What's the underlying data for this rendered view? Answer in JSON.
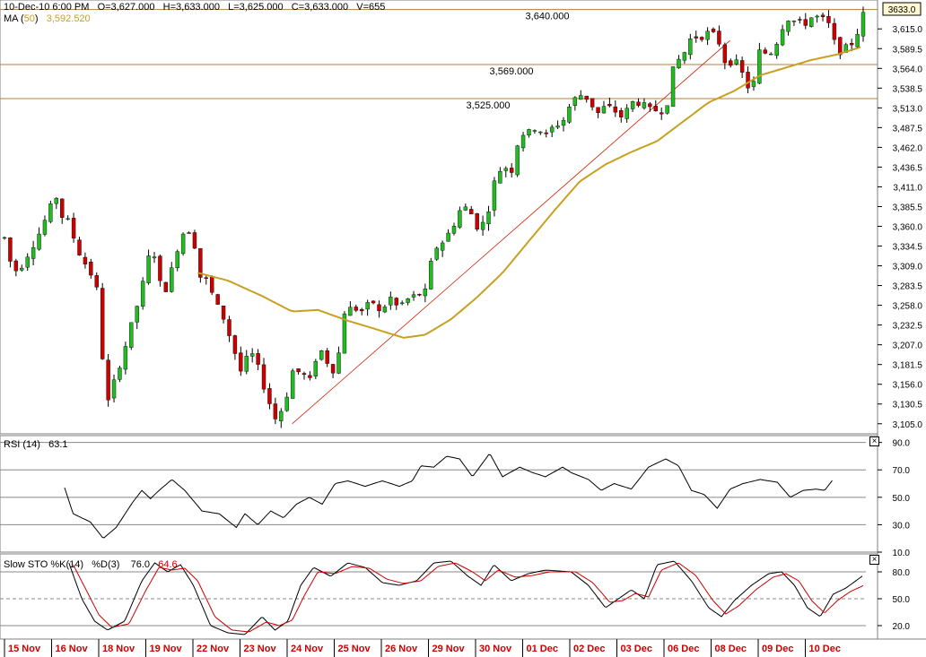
{
  "header": {
    "datetime": "10-Dec-10  6:00 PM",
    "open": "O=3,627.000",
    "high": "H=3,633.000",
    "low": "L=3,625.000",
    "close": "C=3,633.000",
    "volume": "V=655",
    "ma_label": "MA",
    "ma_period": "50",
    "ma_value": "3,592.520"
  },
  "price_tag": "3633.0",
  "colors": {
    "up": "#22bb22",
    "down": "#cc0000",
    "ma": "#c8a020",
    "hline": "#b08040",
    "trend": "#cc2200",
    "axis_date": "#cc0000",
    "grid": "#888888"
  },
  "rsi": {
    "label": "RSI (14)",
    "value": "63.1"
  },
  "sto": {
    "label": "Slow STO %K(14)",
    "d_label": "%D(3)",
    "k_value": "76.0",
    "d_value": "64.6"
  },
  "chart_data": {
    "type": "candlestick",
    "price_axis": {
      "ylim": [
        3092,
        3650
      ],
      "ticks": [
        "3,615.0",
        "3,589.5",
        "3,564.0",
        "3,538.5",
        "3,513.0",
        "3,487.5",
        "3,462.0",
        "3,436.5",
        "3,411.0",
        "3,385.5",
        "3,360.0",
        "3,334.5",
        "3,309.0",
        "3,283.5",
        "3,258.0",
        "3,232.5",
        "3,207.0",
        "3,181.5",
        "3,156.0",
        "3,130.5",
        "3,105.0"
      ]
    },
    "x_labels": [
      "15 Nov",
      "16 Nov",
      "18 Nov",
      "19 Nov",
      "22 Nov",
      "23 Nov",
      "24 Nov",
      "25 Nov",
      "26 Nov",
      "29 Nov",
      "30 Nov",
      "01 Dec",
      "02 Dec",
      "03 Dec",
      "06 Dec",
      "08 Dec",
      "09 Dec",
      "10 Dec"
    ],
    "horizontal_lines": [
      {
        "label": "3,640.000",
        "value": 3640
      },
      {
        "label": "3,569.000",
        "value": 3569
      },
      {
        "label": "3,525.000",
        "value": 3525
      }
    ],
    "trendline": {
      "from": [
        0.335,
        3105
      ],
      "to": [
        0.845,
        3600
      ]
    },
    "price_anchors": [
      [
        0.0,
        3345
      ],
      [
        0.01,
        3300
      ],
      [
        0.02,
        3310
      ],
      [
        0.03,
        3330
      ],
      [
        0.04,
        3350
      ],
      [
        0.05,
        3375
      ],
      [
        0.06,
        3400
      ],
      [
        0.065,
        3375
      ],
      [
        0.075,
        3365
      ],
      [
        0.085,
        3330
      ],
      [
        0.095,
        3310
      ],
      [
        0.105,
        3290
      ],
      [
        0.11,
        3265
      ],
      [
        0.115,
        3175
      ],
      [
        0.12,
        3130
      ],
      [
        0.128,
        3160
      ],
      [
        0.138,
        3195
      ],
      [
        0.15,
        3240
      ],
      [
        0.16,
        3280
      ],
      [
        0.168,
        3320
      ],
      [
        0.176,
        3325
      ],
      [
        0.182,
        3280
      ],
      [
        0.19,
        3280
      ],
      [
        0.198,
        3320
      ],
      [
        0.205,
        3345
      ],
      [
        0.212,
        3360
      ],
      [
        0.22,
        3345
      ],
      [
        0.228,
        3295
      ],
      [
        0.236,
        3290
      ],
      [
        0.246,
        3260
      ],
      [
        0.256,
        3240
      ],
      [
        0.266,
        3205
      ],
      [
        0.276,
        3170
      ],
      [
        0.286,
        3200
      ],
      [
        0.296,
        3175
      ],
      [
        0.306,
        3140
      ],
      [
        0.316,
        3110
      ],
      [
        0.326,
        3130
      ],
      [
        0.336,
        3175
      ],
      [
        0.346,
        3170
      ],
      [
        0.356,
        3160
      ],
      [
        0.366,
        3205
      ],
      [
        0.376,
        3185
      ],
      [
        0.386,
        3170
      ],
      [
        0.396,
        3250
      ],
      [
        0.406,
        3255
      ],
      [
        0.418,
        3250
      ],
      [
        0.428,
        3265
      ],
      [
        0.438,
        3245
      ],
      [
        0.448,
        3270
      ],
      [
        0.458,
        3255
      ],
      [
        0.468,
        3265
      ],
      [
        0.478,
        3270
      ],
      [
        0.49,
        3275
      ],
      [
        0.5,
        3330
      ],
      [
        0.51,
        3340
      ],
      [
        0.52,
        3355
      ],
      [
        0.53,
        3380
      ],
      [
        0.54,
        3385
      ],
      [
        0.55,
        3360
      ],
      [
        0.56,
        3365
      ],
      [
        0.57,
        3415
      ],
      [
        0.58,
        3440
      ],
      [
        0.59,
        3430
      ],
      [
        0.6,
        3480
      ],
      [
        0.61,
        3480
      ],
      [
        0.62,
        3490
      ],
      [
        0.63,
        3475
      ],
      [
        0.64,
        3490
      ],
      [
        0.65,
        3495
      ],
      [
        0.66,
        3520
      ],
      [
        0.67,
        3530
      ],
      [
        0.68,
        3525
      ],
      [
        0.69,
        3505
      ],
      [
        0.7,
        3515
      ],
      [
        0.71,
        3510
      ],
      [
        0.72,
        3500
      ],
      [
        0.73,
        3520
      ],
      [
        0.74,
        3520
      ],
      [
        0.75,
        3510
      ],
      [
        0.76,
        3510
      ],
      [
        0.77,
        3510
      ],
      [
        0.78,
        3570
      ],
      [
        0.79,
        3580
      ],
      [
        0.8,
        3605
      ],
      [
        0.81,
        3605
      ],
      [
        0.82,
        3610
      ],
      [
        0.83,
        3605
      ],
      [
        0.84,
        3570
      ],
      [
        0.85,
        3575
      ],
      [
        0.86,
        3555
      ],
      [
        0.87,
        3530
      ],
      [
        0.88,
        3590
      ],
      [
        0.89,
        3580
      ],
      [
        0.9,
        3600
      ],
      [
        0.91,
        3630
      ],
      [
        0.92,
        3625
      ],
      [
        0.93,
        3620
      ],
      [
        0.94,
        3630
      ],
      [
        0.95,
        3630
      ],
      [
        0.96,
        3620
      ],
      [
        0.97,
        3585
      ],
      [
        0.98,
        3590
      ],
      [
        0.99,
        3600
      ],
      [
        1.0,
        3633
      ]
    ],
    "ma_anchors": [
      [
        0.225,
        3300
      ],
      [
        0.26,
        3290
      ],
      [
        0.3,
        3270
      ],
      [
        0.335,
        3250
      ],
      [
        0.365,
        3252
      ],
      [
        0.4,
        3238
      ],
      [
        0.43,
        3228
      ],
      [
        0.465,
        3216
      ],
      [
        0.49,
        3220
      ],
      [
        0.52,
        3240
      ],
      [
        0.55,
        3268
      ],
      [
        0.58,
        3300
      ],
      [
        0.61,
        3340
      ],
      [
        0.64,
        3380
      ],
      [
        0.67,
        3418
      ],
      [
        0.7,
        3440
      ],
      [
        0.73,
        3456
      ],
      [
        0.76,
        3470
      ],
      [
        0.79,
        3495
      ],
      [
        0.82,
        3520
      ],
      [
        0.85,
        3535
      ],
      [
        0.88,
        3555
      ],
      [
        0.91,
        3565
      ],
      [
        0.94,
        3575
      ],
      [
        0.97,
        3582
      ],
      [
        1.0,
        3592.5
      ]
    ],
    "rsi_axis": {
      "ylim": [
        10,
        95
      ],
      "ticks": [
        "90.0",
        "70.0",
        "50.0",
        "30.0",
        "10.0"
      ],
      "grid": [
        30,
        50,
        70,
        90
      ]
    },
    "rsi_anchors": [
      [
        0.07,
        57
      ],
      [
        0.08,
        38
      ],
      [
        0.1,
        32
      ],
      [
        0.115,
        20
      ],
      [
        0.13,
        28
      ],
      [
        0.15,
        47
      ],
      [
        0.16,
        55
      ],
      [
        0.17,
        49
      ],
      [
        0.18,
        55
      ],
      [
        0.195,
        63
      ],
      [
        0.21,
        55
      ],
      [
        0.23,
        40
      ],
      [
        0.25,
        38
      ],
      [
        0.27,
        28
      ],
      [
        0.28,
        38
      ],
      [
        0.295,
        30
      ],
      [
        0.31,
        40
      ],
      [
        0.325,
        35
      ],
      [
        0.34,
        45
      ],
      [
        0.355,
        50
      ],
      [
        0.37,
        45
      ],
      [
        0.385,
        60
      ],
      [
        0.4,
        62
      ],
      [
        0.42,
        58
      ],
      [
        0.44,
        62
      ],
      [
        0.46,
        58
      ],
      [
        0.475,
        62
      ],
      [
        0.485,
        73
      ],
      [
        0.5,
        72
      ],
      [
        0.515,
        80
      ],
      [
        0.53,
        78
      ],
      [
        0.545,
        65
      ],
      [
        0.565,
        82
      ],
      [
        0.58,
        65
      ],
      [
        0.6,
        72
      ],
      [
        0.615,
        68
      ],
      [
        0.63,
        65
      ],
      [
        0.65,
        72
      ],
      [
        0.66,
        68
      ],
      [
        0.68,
        63
      ],
      [
        0.695,
        55
      ],
      [
        0.71,
        60
      ],
      [
        0.73,
        56
      ],
      [
        0.75,
        72
      ],
      [
        0.77,
        78
      ],
      [
        0.785,
        73
      ],
      [
        0.8,
        55
      ],
      [
        0.815,
        52
      ],
      [
        0.83,
        42
      ],
      [
        0.845,
        56
      ],
      [
        0.86,
        60
      ],
      [
        0.88,
        63
      ],
      [
        0.9,
        61
      ],
      [
        0.915,
        50
      ],
      [
        0.93,
        55
      ],
      [
        0.945,
        56
      ],
      [
        0.955,
        55
      ],
      [
        0.965,
        63
      ]
    ],
    "sto_axis": {
      "ylim": [
        5,
        100
      ],
      "ticks": [
        "80.0",
        "50.0",
        "20.0"
      ],
      "grid": [
        20,
        50,
        80
      ],
      "dashed": 50
    },
    "k_anchors": [
      [
        0.075,
        90
      ],
      [
        0.09,
        50
      ],
      [
        0.105,
        25
      ],
      [
        0.12,
        15
      ],
      [
        0.14,
        25
      ],
      [
        0.16,
        70
      ],
      [
        0.175,
        90
      ],
      [
        0.19,
        80
      ],
      [
        0.205,
        88
      ],
      [
        0.22,
        65
      ],
      [
        0.24,
        20
      ],
      [
        0.26,
        12
      ],
      [
        0.28,
        10
      ],
      [
        0.3,
        30
      ],
      [
        0.315,
        15
      ],
      [
        0.33,
        25
      ],
      [
        0.345,
        65
      ],
      [
        0.36,
        85
      ],
      [
        0.38,
        75
      ],
      [
        0.4,
        90
      ],
      [
        0.42,
        85
      ],
      [
        0.44,
        68
      ],
      [
        0.46,
        65
      ],
      [
        0.48,
        70
      ],
      [
        0.5,
        90
      ],
      [
        0.52,
        92
      ],
      [
        0.54,
        75
      ],
      [
        0.555,
        65
      ],
      [
        0.57,
        88
      ],
      [
        0.59,
        70
      ],
      [
        0.61,
        78
      ],
      [
        0.63,
        82
      ],
      [
        0.66,
        80
      ],
      [
        0.68,
        65
      ],
      [
        0.7,
        40
      ],
      [
        0.715,
        50
      ],
      [
        0.73,
        60
      ],
      [
        0.745,
        50
      ],
      [
        0.76,
        88
      ],
      [
        0.78,
        92
      ],
      [
        0.8,
        70
      ],
      [
        0.82,
        40
      ],
      [
        0.835,
        30
      ],
      [
        0.85,
        48
      ],
      [
        0.87,
        65
      ],
      [
        0.89,
        78
      ],
      [
        0.905,
        80
      ],
      [
        0.92,
        65
      ],
      [
        0.935,
        40
      ],
      [
        0.95,
        30
      ],
      [
        0.965,
        55
      ],
      [
        0.98,
        62
      ],
      [
        1.0,
        76
      ]
    ],
    "d_anchors": [
      [
        0.08,
        88
      ],
      [
        0.095,
        60
      ],
      [
        0.11,
        32
      ],
      [
        0.125,
        18
      ],
      [
        0.145,
        22
      ],
      [
        0.165,
        60
      ],
      [
        0.18,
        85
      ],
      [
        0.195,
        82
      ],
      [
        0.21,
        84
      ],
      [
        0.225,
        70
      ],
      [
        0.245,
        30
      ],
      [
        0.265,
        15
      ],
      [
        0.285,
        13
      ],
      [
        0.305,
        24
      ],
      [
        0.32,
        20
      ],
      [
        0.335,
        26
      ],
      [
        0.35,
        55
      ],
      [
        0.365,
        80
      ],
      [
        0.385,
        78
      ],
      [
        0.405,
        86
      ],
      [
        0.425,
        84
      ],
      [
        0.445,
        72
      ],
      [
        0.465,
        67
      ],
      [
        0.485,
        70
      ],
      [
        0.505,
        86
      ],
      [
        0.525,
        90
      ],
      [
        0.545,
        80
      ],
      [
        0.56,
        70
      ],
      [
        0.575,
        82
      ],
      [
        0.595,
        74
      ],
      [
        0.615,
        76
      ],
      [
        0.635,
        80
      ],
      [
        0.665,
        80
      ],
      [
        0.685,
        68
      ],
      [
        0.705,
        46
      ],
      [
        0.72,
        48
      ],
      [
        0.735,
        56
      ],
      [
        0.75,
        52
      ],
      [
        0.765,
        82
      ],
      [
        0.785,
        90
      ],
      [
        0.805,
        76
      ],
      [
        0.825,
        48
      ],
      [
        0.84,
        33
      ],
      [
        0.855,
        42
      ],
      [
        0.875,
        60
      ],
      [
        0.895,
        74
      ],
      [
        0.91,
        78
      ],
      [
        0.925,
        70
      ],
      [
        0.94,
        48
      ],
      [
        0.955,
        34
      ],
      [
        0.97,
        48
      ],
      [
        0.985,
        58
      ],
      [
        1.0,
        64.6
      ]
    ]
  }
}
